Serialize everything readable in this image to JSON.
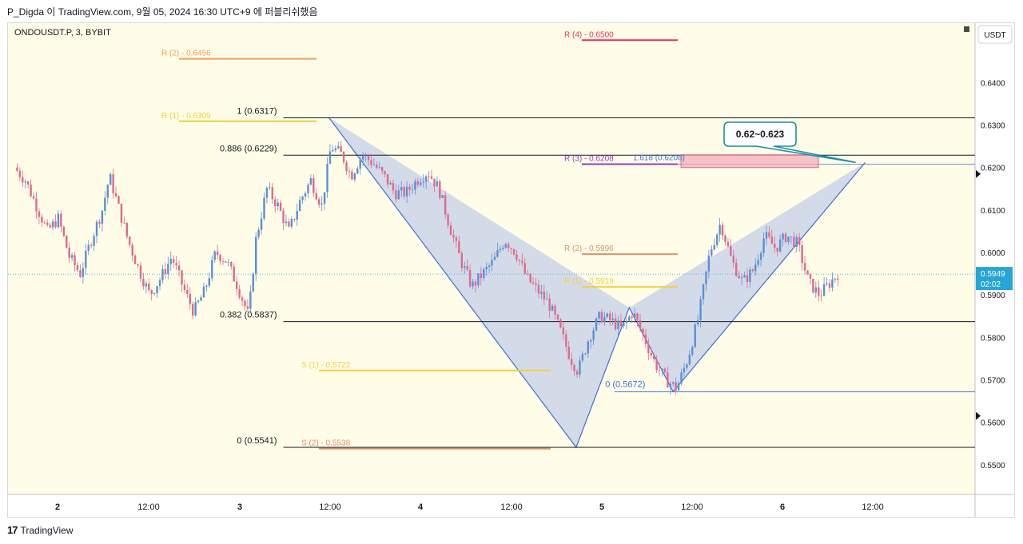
{
  "header": {
    "title": "P_Digda 이 TradingView.com, 9월 05, 2024 16:30 UTC+9 에 퍼블리쉬했음"
  },
  "footer": {
    "logo": "17",
    "brand": "TradingView"
  },
  "colors": {
    "background": "#fffde7",
    "candle_up": "#5b8fd6",
    "candle_down": "#e06a8c",
    "pattern_fill": "#c5cfe8",
    "pattern_line": "#3d6fd8",
    "last_price_bg": "#26a5d6",
    "callout_border": "#1a8fa8"
  },
  "chart_data": {
    "type": "candlestick",
    "symbol": "ONDOUSDT.P, 3, BYBIT",
    "currency": "USDT",
    "y_ticks": [
      "0.6500",
      "0.6400",
      "0.6300",
      "0.6200",
      "0.6100",
      "0.6000",
      "0.5900",
      "0.5800",
      "0.5700",
      "0.5600",
      "0.5500"
    ],
    "x_ticks": [
      "2",
      "12:00",
      "3",
      "12:00",
      "4",
      "12:00",
      "5",
      "12:00",
      "6",
      "12:00"
    ],
    "ylim": [
      0.543,
      0.654
    ],
    "last_price": {
      "value": "0.5949",
      "countdown": "02:02"
    },
    "price_path": [
      [
        0.0,
        0.62
      ],
      [
        0.6,
        0.617
      ],
      [
        1.2,
        0.611
      ],
      [
        1.8,
        0.605
      ],
      [
        2.4,
        0.608
      ],
      [
        3.0,
        0.599
      ],
      [
        3.6,
        0.595
      ],
      [
        4.2,
        0.603
      ],
      [
        4.8,
        0.61
      ],
      [
        5.2,
        0.618
      ],
      [
        5.6,
        0.612
      ],
      [
        6.2,
        0.603
      ],
      [
        6.8,
        0.596
      ],
      [
        7.4,
        0.59
      ],
      [
        8.0,
        0.594
      ],
      [
        8.6,
        0.599
      ],
      [
        9.2,
        0.592
      ],
      [
        9.8,
        0.586
      ],
      [
        10.4,
        0.591
      ],
      [
        11.0,
        0.6
      ],
      [
        11.6,
        0.598
      ],
      [
        12.2,
        0.592
      ],
      [
        12.8,
        0.585
      ],
      [
        13.2,
        0.603
      ],
      [
        13.8,
        0.615
      ],
      [
        14.4,
        0.611
      ],
      [
        15.0,
        0.605
      ],
      [
        15.6,
        0.612
      ],
      [
        16.2,
        0.617
      ],
      [
        16.8,
        0.611
      ],
      [
        17.3,
        0.625
      ],
      [
        17.9,
        0.623
      ],
      [
        18.4,
        0.618
      ],
      [
        19.0,
        0.623
      ],
      [
        19.6,
        0.621
      ],
      [
        20.2,
        0.618
      ],
      [
        20.8,
        0.614
      ],
      [
        21.4,
        0.614
      ],
      [
        22.0,
        0.617
      ],
      [
        22.6,
        0.619
      ],
      [
        23.2,
        0.615
      ],
      [
        23.8,
        0.606
      ],
      [
        24.4,
        0.598
      ],
      [
        25.0,
        0.592
      ],
      [
        25.6,
        0.595
      ],
      [
        26.2,
        0.598
      ],
      [
        26.8,
        0.603
      ],
      [
        27.4,
        0.6
      ],
      [
        28.0,
        0.594
      ],
      [
        28.6,
        0.591
      ],
      [
        29.2,
        0.588
      ],
      [
        29.8,
        0.582
      ],
      [
        30.4,
        0.575
      ],
      [
        30.8,
        0.572
      ],
      [
        31.4,
        0.58
      ],
      [
        32.0,
        0.585
      ],
      [
        32.6,
        0.584
      ],
      [
        33.2,
        0.582
      ],
      [
        33.8,
        0.586
      ],
      [
        34.4,
        0.58
      ],
      [
        35.0,
        0.574
      ],
      [
        35.6,
        0.57
      ],
      [
        36.2,
        0.568
      ],
      [
        36.8,
        0.575
      ],
      [
        37.4,
        0.585
      ],
      [
        38.0,
        0.6
      ],
      [
        38.6,
        0.607
      ],
      [
        39.2,
        0.598
      ],
      [
        39.8,
        0.593
      ],
      [
        40.4,
        0.596
      ],
      [
        41.0,
        0.604
      ],
      [
        41.6,
        0.601
      ],
      [
        42.2,
        0.604
      ],
      [
        42.8,
        0.602
      ],
      [
        43.4,
        0.593
      ],
      [
        44.0,
        0.59
      ],
      [
        44.6,
        0.593
      ],
      [
        45.0,
        0.595
      ]
    ],
    "fib_levels": [
      {
        "label": "1 (0.6317)",
        "value": 0.6317
      },
      {
        "label": "0.886 (0.6229)",
        "value": 0.6229
      },
      {
        "label": "0.382 (0.5837)",
        "value": 0.5837
      },
      {
        "label": "0 (0.5541)",
        "value": 0.5541
      }
    ],
    "zero_level": {
      "label": "0 (0.5672)",
      "value": 0.5672
    },
    "ext_level": {
      "label": "1.618 (0.6208)",
      "value": 0.6208
    },
    "pivots_left": [
      {
        "label": "R (2) - 0.6456",
        "value": 0.6456,
        "color": "#f0a060"
      },
      {
        "label": "R (1) - 0.6309",
        "value": 0.6309,
        "color": "#f0d040"
      }
    ],
    "pivots_right": [
      {
        "label": "R (4) - 0.6500",
        "value": 0.65,
        "color": "#e83060"
      },
      {
        "label": "R (3) - 0.6208",
        "value": 0.6208,
        "color": "#9040c0"
      },
      {
        "label": "R (2) - 0.5996",
        "value": 0.5996,
        "color": "#e09070"
      },
      {
        "label": "R (1) - 0.5919",
        "value": 0.5919,
        "color": "#f0d040"
      }
    ],
    "supports": [
      {
        "label": "S (1) - 0.5722",
        "value": 0.5722,
        "color": "#f0d040"
      },
      {
        "label": "S (2) - 0.5538",
        "value": 0.5538,
        "color": "#e09070"
      }
    ],
    "pattern_points": [
      {
        "t": 17.2,
        "p": 0.6317
      },
      {
        "t": 30.7,
        "p": 0.5541
      },
      {
        "t": 33.6,
        "p": 0.587
      },
      {
        "t": 36.0,
        "p": 0.5672
      },
      {
        "t": 46.5,
        "p": 0.6212
      }
    ],
    "target_zone": {
      "low": 0.62,
      "high": 0.623
    },
    "annotation": "0.62~0.623"
  }
}
